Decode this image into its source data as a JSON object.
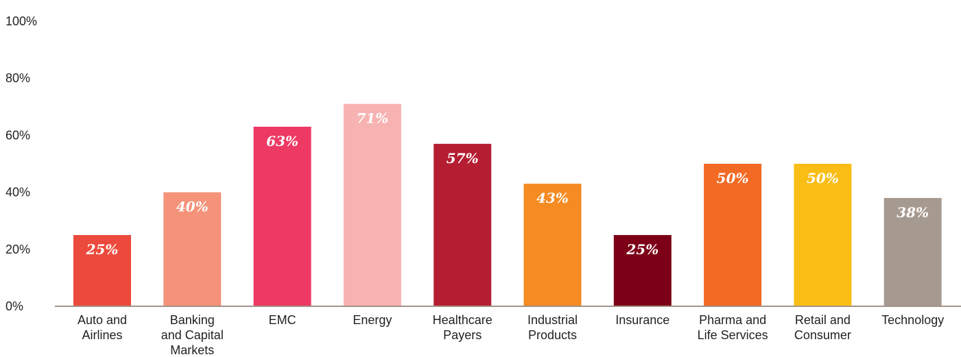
{
  "chart_data": {
    "type": "bar",
    "title": "",
    "xlabel": "",
    "ylabel": "",
    "ylim": [
      0,
      100
    ],
    "y_ticks": [
      0,
      20,
      40,
      60,
      80,
      100
    ],
    "y_tick_labels": [
      "0%",
      "20%",
      "40%",
      "60%",
      "80%",
      "100%"
    ],
    "grid": false,
    "categories": [
      [
        "Auto and",
        "Airlines"
      ],
      [
        "Banking",
        "and Capital",
        "Markets"
      ],
      [
        "EMC"
      ],
      [
        "Energy"
      ],
      [
        "Healthcare",
        "Payers"
      ],
      [
        "Industrial",
        "Products"
      ],
      [
        "Insurance"
      ],
      [
        "Pharma and",
        "Life Services"
      ],
      [
        "Retail and",
        "Consumer"
      ],
      [
        "Technology"
      ]
    ],
    "values": [
      25,
      40,
      63,
      71,
      57,
      43,
      25,
      50,
      50,
      38
    ],
    "value_labels": [
      "25%",
      "40%",
      "63%",
      "71%",
      "57%",
      "43%",
      "25%",
      "50%",
      "50%",
      "38%"
    ],
    "value_suffix": "%",
    "bar_colors": [
      "#ec4a3c",
      "#f4937a",
      "#ed3963",
      "#f7b2b2",
      "#b51e32",
      "#f58b22",
      "#7c0017",
      "#f26a23",
      "#f9bd15",
      "#a69a90"
    ],
    "axis_color": "#a39388"
  }
}
